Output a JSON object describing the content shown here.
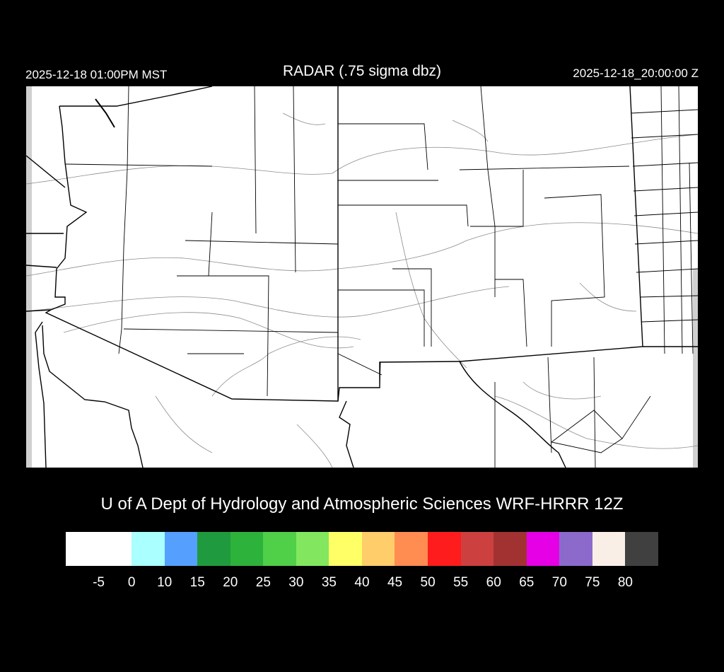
{
  "header": {
    "title": "RADAR (.75 sigma dbz)",
    "local_time": "2025-12-18 01:00PM MST",
    "valid_time": "2025-12-18_20:00:00 Z"
  },
  "map": {
    "region": "Arizona and New Mexico",
    "border_color": "#000000",
    "contour_color": "#8c8c8c",
    "background": "#ffffff"
  },
  "credit": "U of A Dept of Hydrology and Atmospheric Sciences WRF-HRRR 12Z",
  "colorbar": {
    "colors": [
      "#ffffff",
      "#aaffff",
      "#55a0ff",
      "#1f9a3e",
      "#2db33b",
      "#50cf48",
      "#82e75e",
      "#ffff66",
      "#ffcd6a",
      "#ff8c50",
      "#ff1c1c",
      "#cc4040",
      "#a23232",
      "#e600e6",
      "#8c6acc",
      "#faefe6",
      "#404040"
    ],
    "labels": [
      "-5",
      "0",
      "10",
      "15",
      "20",
      "25",
      "30",
      "35",
      "40",
      "45",
      "50",
      "55",
      "60",
      "65",
      "70",
      "75",
      "80"
    ]
  }
}
